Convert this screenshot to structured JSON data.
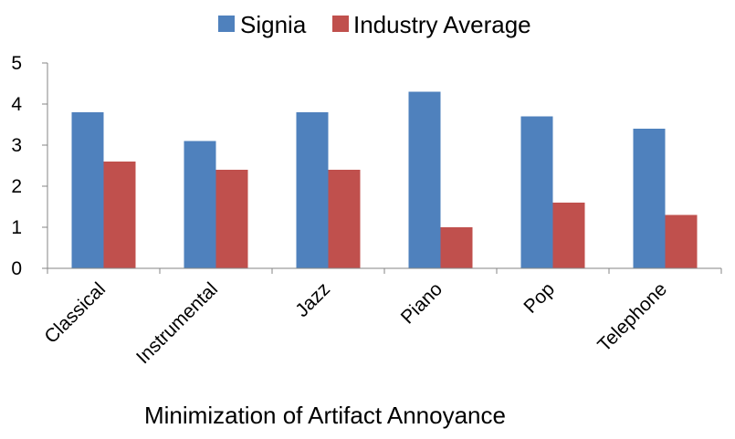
{
  "chart_data": {
    "type": "bar",
    "title": "",
    "xlabel": "Minimization of Artifact Annoyance",
    "ylabel": "",
    "ylim": [
      0,
      5
    ],
    "yticks": [
      "0",
      "1",
      "2",
      "3",
      "4",
      "5"
    ],
    "grid": false,
    "legend_position": "top",
    "categories": [
      "Classical",
      "Instrumental",
      "Jazz",
      "Piano",
      "Pop",
      "Telephone"
    ],
    "series": [
      {
        "name": "Signia",
        "color": "#4f81bd",
        "values": [
          3.8,
          3.1,
          3.8,
          4.3,
          3.7,
          3.4
        ]
      },
      {
        "name": "Industry Average",
        "color": "#c0504d",
        "values": [
          2.6,
          2.4,
          2.4,
          1.0,
          1.6,
          1.3
        ]
      }
    ]
  }
}
